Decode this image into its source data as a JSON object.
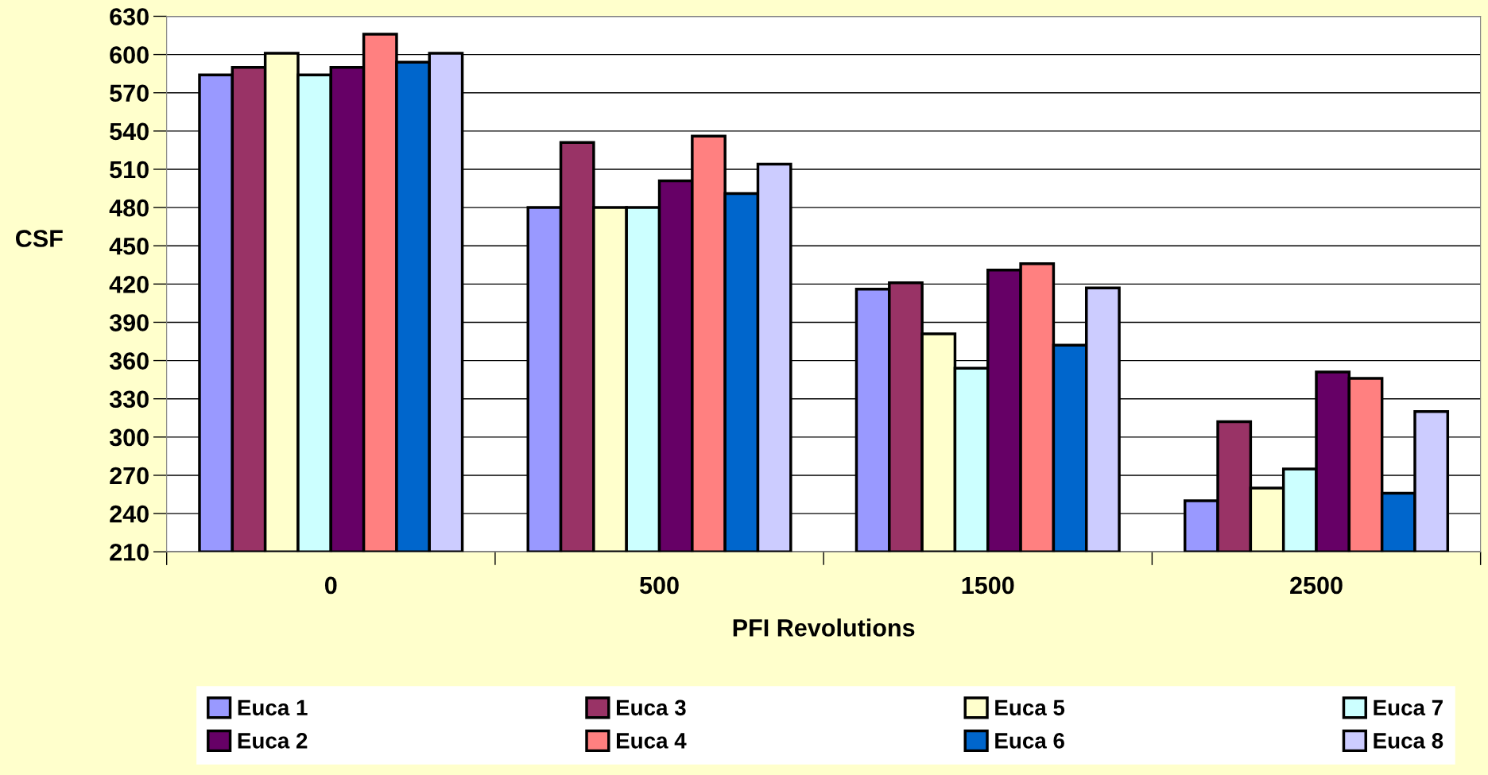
{
  "chart_data": {
    "type": "bar",
    "xlabel": "PFI Revolutions",
    "ylabel": "CSF",
    "categories": [
      "0",
      "500",
      "1500",
      "2500"
    ],
    "series": [
      {
        "name": "Euca 1",
        "color": "#9999ff",
        "values": [
          584,
          480,
          416,
          250
        ]
      },
      {
        "name": "Euca 3",
        "color": "#993366",
        "values": [
          590,
          531,
          421,
          312
        ]
      },
      {
        "name": "Euca 5",
        "color": "#ffffcc",
        "values": [
          601,
          480,
          381,
          260
        ]
      },
      {
        "name": "Euca 7",
        "color": "#ccffff",
        "values": [
          584,
          480,
          354,
          275
        ]
      },
      {
        "name": "Euca 2",
        "color": "#660066",
        "values": [
          590,
          501,
          431,
          351
        ]
      },
      {
        "name": "Euca 4",
        "color": "#ff8080",
        "values": [
          616,
          536,
          436,
          346
        ]
      },
      {
        "name": "Euca 6",
        "color": "#0066cc",
        "values": [
          594,
          491,
          372,
          256
        ]
      },
      {
        "name": "Euca 8",
        "color": "#ccccff",
        "values": [
          601,
          514,
          417,
          320
        ]
      }
    ],
    "ylim": [
      210,
      630
    ],
    "yticks": [
      210,
      240,
      270,
      300,
      330,
      360,
      390,
      420,
      450,
      480,
      510,
      540,
      570,
      600,
      630
    ],
    "grid": "y",
    "legend": "bottom"
  }
}
